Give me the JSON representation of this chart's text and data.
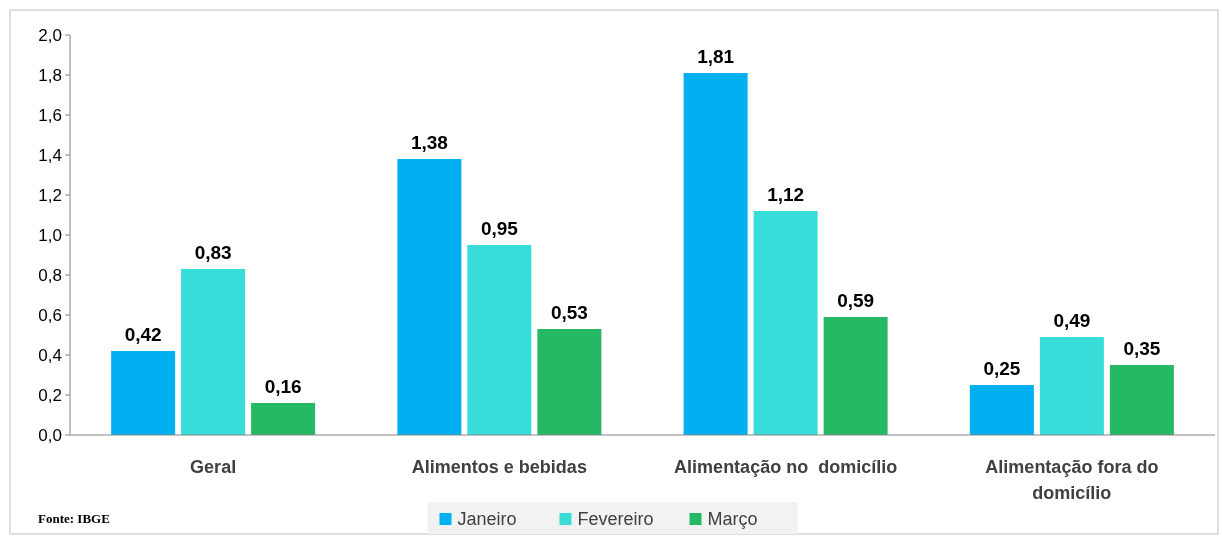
{
  "chart_data": {
    "type": "bar",
    "categories": [
      "Geral",
      "Alimentos e bebidas",
      "Alimentação no  domicílio",
      "Alimentação fora do domicílio"
    ],
    "series": [
      {
        "name": "Janeiro",
        "color": "#00b0f0",
        "values": [
          0.42,
          1.38,
          1.81,
          0.25
        ],
        "value_labels": [
          "0,42",
          "1,38",
          "1,81",
          "0,25"
        ]
      },
      {
        "name": "Fevereiro",
        "color": "#38dcd8",
        "values": [
          0.83,
          0.95,
          1.12,
          0.49
        ],
        "value_labels": [
          "0,83",
          "0,95",
          "1,12",
          "0,49"
        ]
      },
      {
        "name": "Março",
        "color": "#25b865",
        "values": [
          0.16,
          0.53,
          0.59,
          0.35
        ],
        "value_labels": [
          "0,16",
          "0,53",
          "0,59",
          "0,35"
        ]
      }
    ],
    "ylim": [
      0,
      2
    ],
    "yticks": [
      {
        "value": 0,
        "label": "0,0"
      },
      {
        "value": 0.2,
        "label": "0,2"
      },
      {
        "value": 0.4,
        "label": "0,4"
      },
      {
        "value": 0.6,
        "label": "0,6"
      },
      {
        "value": 0.8,
        "label": "0,8"
      },
      {
        "value": 1,
        "label": "1,0"
      },
      {
        "value": 1.2,
        "label": "1,2"
      },
      {
        "value": 1.4,
        "label": "1,4"
      },
      {
        "value": 1.6,
        "label": "1,6"
      },
      {
        "value": 1.8,
        "label": "1,8"
      },
      {
        "value": 2,
        "label": "2,0"
      }
    ],
    "legend": "bottom",
    "grid": false,
    "annotations": [
      "Fonte: IBGE"
    ]
  }
}
